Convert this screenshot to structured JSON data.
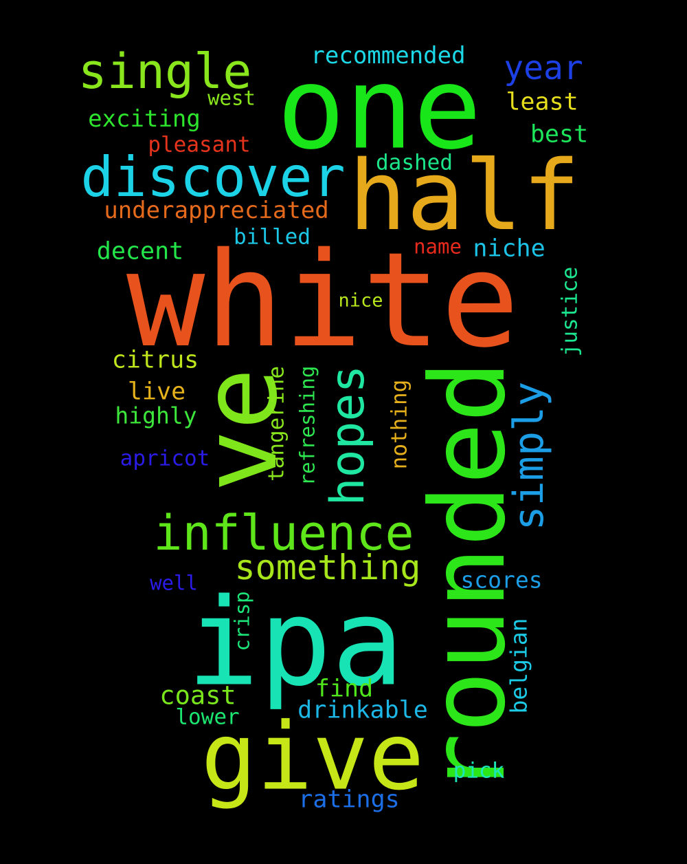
{
  "background_color": "#000000",
  "words": [
    {
      "text": "white",
      "color": "#e8521c"
    },
    {
      "text": "one",
      "color": "#19e619"
    },
    {
      "text": "half",
      "color": "#e6a91c"
    },
    {
      "text": "ipa",
      "color": "#17e3b5"
    },
    {
      "text": "rounded",
      "color": "#2de61a"
    },
    {
      "text": "ve",
      "color": "#7ee61a"
    },
    {
      "text": "give",
      "color": "#c7e617"
    },
    {
      "text": "discover",
      "color": "#1cd2e6"
    },
    {
      "text": "influence",
      "color": "#5ee61a"
    },
    {
      "text": "single",
      "color": "#8ae61c"
    },
    {
      "text": "hopes",
      "color": "#1fe6a1"
    },
    {
      "text": "simply",
      "color": "#1c9ee6"
    },
    {
      "text": "something",
      "color": "#a6e61a"
    },
    {
      "text": "year",
      "color": "#1c3fe6"
    },
    {
      "text": "recommended",
      "color": "#1cd7e6"
    },
    {
      "text": "underappreciated",
      "color": "#e66a1c"
    },
    {
      "text": "exciting",
      "color": "#2de62d"
    },
    {
      "text": "pleasant",
      "color": "#e6331c"
    },
    {
      "text": "least",
      "color": "#e6de1c"
    },
    {
      "text": "best",
      "color": "#1ce65a"
    },
    {
      "text": "dashed",
      "color": "#1ce68a"
    },
    {
      "text": "west",
      "color": "#8ae61c"
    },
    {
      "text": "billed",
      "color": "#1cc8e6"
    },
    {
      "text": "decent",
      "color": "#22e64a"
    },
    {
      "text": "name",
      "color": "#e62a1c"
    },
    {
      "text": "niche",
      "color": "#1cc3e6"
    },
    {
      "text": "nice",
      "color": "#b8e61c"
    },
    {
      "text": "justice",
      "color": "#1ce68f"
    },
    {
      "text": "citrus",
      "color": "#bfe61c"
    },
    {
      "text": "tangerine",
      "color": "#8ae61c"
    },
    {
      "text": "refreshing",
      "color": "#2de650"
    },
    {
      "text": "nothing",
      "color": "#e6b01c"
    },
    {
      "text": "live",
      "color": "#e6b21c"
    },
    {
      "text": "highly",
      "color": "#3de63a"
    },
    {
      "text": "apricot",
      "color": "#2a1ce6"
    },
    {
      "text": "well",
      "color": "#2a1ce6"
    },
    {
      "text": "scores",
      "color": "#1c9ee6"
    },
    {
      "text": "crisp",
      "color": "#1ce67a"
    },
    {
      "text": "belgian",
      "color": "#1ccbe6"
    },
    {
      "text": "find",
      "color": "#4fe61c"
    },
    {
      "text": "coast",
      "color": "#7ae61c"
    },
    {
      "text": "lower",
      "color": "#1ce670"
    },
    {
      "text": "drinkable",
      "color": "#1cb7e6"
    },
    {
      "text": "pick",
      "color": "#1ce6b8"
    },
    {
      "text": "ratings",
      "color": "#1c6ee6"
    }
  ]
}
